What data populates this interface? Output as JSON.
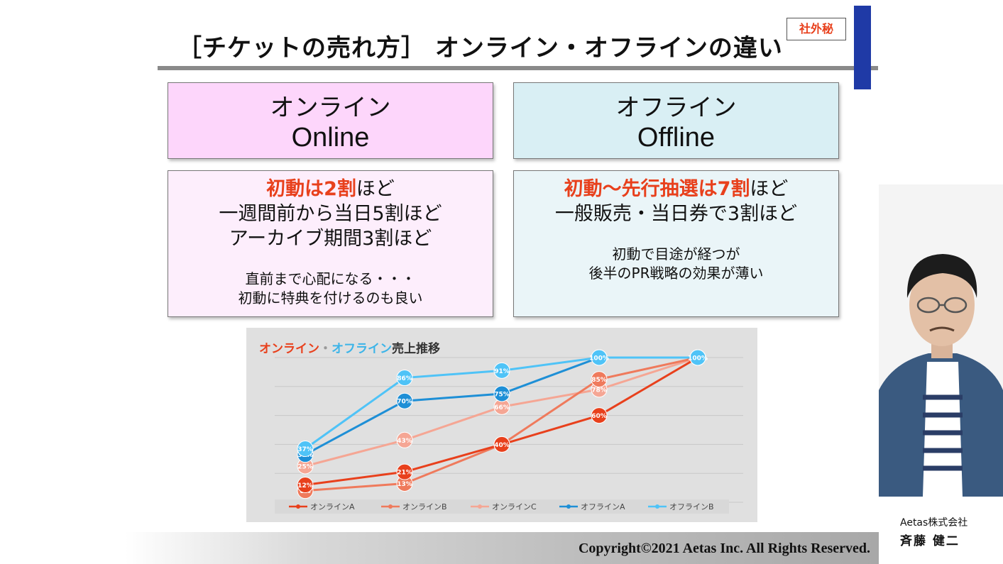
{
  "header": {
    "title": "［チケットの売れ方］ オンライン・オフラインの違い",
    "badge": "社外秘"
  },
  "online": {
    "title_jp": "オンライン",
    "title_en": "Online",
    "line1_red": "初動は2割",
    "line1_rest": "ほど",
    "line2": "一週間前から当日5割ほど",
    "line3": "アーカイブ期間3割ほど",
    "note1": "直前まで心配になる・・・",
    "note2": "初動に特典を付けるのも良い"
  },
  "offline": {
    "title_jp": "オフライン",
    "title_en": "Offline",
    "line1_red": "初動～先行抽選は7割",
    "line1_rest": "ほど",
    "line2": "一般販売・当日券で3割ほど",
    "note1": "初動で目途が経つが",
    "note2": "後半のPR戦略の効果が薄い"
  },
  "chart_data": {
    "type": "line",
    "title_parts": [
      {
        "text": "オンライン",
        "color": "#e8401c"
      },
      {
        "text": "・",
        "color": "#999999"
      },
      {
        "text": "オフライン",
        "color": "#3cb4e8"
      },
      {
        "text": "売上推移",
        "color": "#333333"
      }
    ],
    "x": [
      1,
      2,
      3,
      4,
      5
    ],
    "ylim": [
      0,
      100
    ],
    "grid": true,
    "legend_position": "bottom",
    "series": [
      {
        "name": "オンラインA",
        "color": "#e8401c",
        "values": [
          12,
          21,
          40,
          60,
          100
        ]
      },
      {
        "name": "オンラインB",
        "color": "#ef7a5c",
        "values": [
          8,
          13,
          40,
          85,
          100
        ]
      },
      {
        "name": "オンラインC",
        "color": "#f5a694",
        "values": [
          25,
          43,
          66,
          78,
          100
        ]
      },
      {
        "name": "オフラインA",
        "color": "#1e8fd6",
        "values": [
          33,
          70,
          75,
          100,
          100
        ]
      },
      {
        "name": "オフラインB",
        "color": "#4fc3f7",
        "values": [
          37,
          86,
          91,
          100,
          100
        ]
      }
    ]
  },
  "speaker": {
    "company": "Aetas株式会社",
    "name": "斉藤 健二"
  },
  "footer": {
    "copyright": "Copyright©2021 Aetas Inc.  All Rights Reserved."
  }
}
